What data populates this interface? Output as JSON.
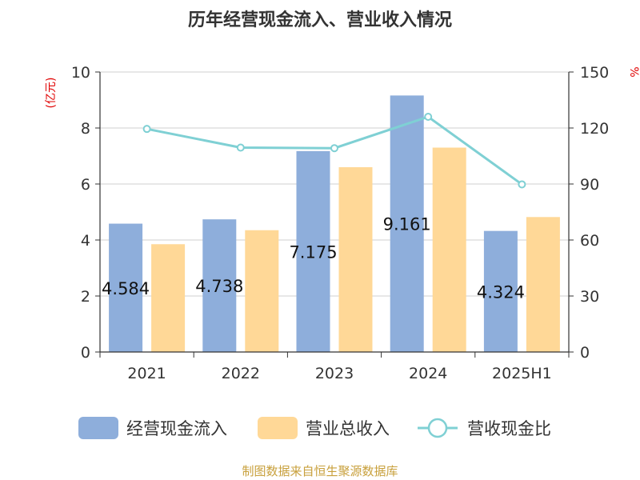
{
  "chart_data": {
    "type": "bar",
    "title": "历年经营现金流入、营业收入情况",
    "categories": [
      "2021",
      "2022",
      "2023",
      "2024",
      "2025H1"
    ],
    "y_left": {
      "label": "(亿元)",
      "range": [
        0,
        10
      ],
      "ticks": [
        0,
        2,
        4,
        6,
        8,
        10
      ]
    },
    "y_right": {
      "label": "%",
      "range": [
        0,
        150
      ],
      "ticks": [
        0,
        30,
        60,
        90,
        120,
        150
      ]
    },
    "grid": true,
    "legend_position": "bottom",
    "series": [
      {
        "name": "经营现金流入",
        "axis": "left",
        "kind": "bar",
        "color": "#8eaedb",
        "values": [
          4.584,
          4.738,
          7.175,
          9.161,
          4.324
        ],
        "labels": [
          "4.584",
          "4.738",
          "7.175",
          "9.161",
          "4.324"
        ]
      },
      {
        "name": "营业总收入",
        "axis": "left",
        "kind": "bar",
        "color": "#ffd897",
        "values": [
          3.85,
          4.35,
          6.6,
          7.3,
          4.82
        ]
      },
      {
        "name": "营收现金比",
        "axis": "right",
        "kind": "line",
        "color": "#7fd0d4",
        "values": [
          119.5,
          109.5,
          109.2,
          126,
          89.8
        ]
      }
    ],
    "source": "制图数据来自恒生聚源数据库"
  }
}
